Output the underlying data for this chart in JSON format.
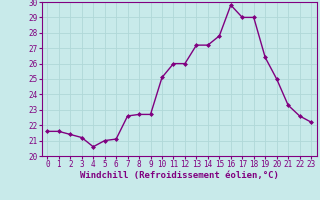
{
  "x": [
    0,
    1,
    2,
    3,
    4,
    5,
    6,
    7,
    8,
    9,
    10,
    11,
    12,
    13,
    14,
    15,
    16,
    17,
    18,
    19,
    20,
    21,
    22,
    23
  ],
  "y": [
    21.6,
    21.6,
    21.4,
    21.2,
    20.6,
    21.0,
    21.1,
    22.6,
    22.7,
    22.7,
    25.1,
    26.0,
    26.0,
    27.2,
    27.2,
    27.8,
    29.8,
    29.0,
    29.0,
    26.4,
    25.0,
    23.3,
    22.6,
    22.2
  ],
  "line_color": "#800080",
  "marker": "D",
  "marker_size": 2.0,
  "bg_color": "#c8eaea",
  "grid_color": "#b0d8d8",
  "xlabel": "Windchill (Refroidissement éolien,°C)",
  "xlabel_fontsize": 6.5,
  "xlabel_color": "#800080",
  "tick_color": "#800080",
  "ylim": [
    20,
    30
  ],
  "xlim": [
    -0.5,
    23.5
  ],
  "yticks": [
    20,
    21,
    22,
    23,
    24,
    25,
    26,
    27,
    28,
    29,
    30
  ],
  "xticks": [
    0,
    1,
    2,
    3,
    4,
    5,
    6,
    7,
    8,
    9,
    10,
    11,
    12,
    13,
    14,
    15,
    16,
    17,
    18,
    19,
    20,
    21,
    22,
    23
  ],
  "tick_fontsize": 5.5,
  "line_width": 1.0
}
